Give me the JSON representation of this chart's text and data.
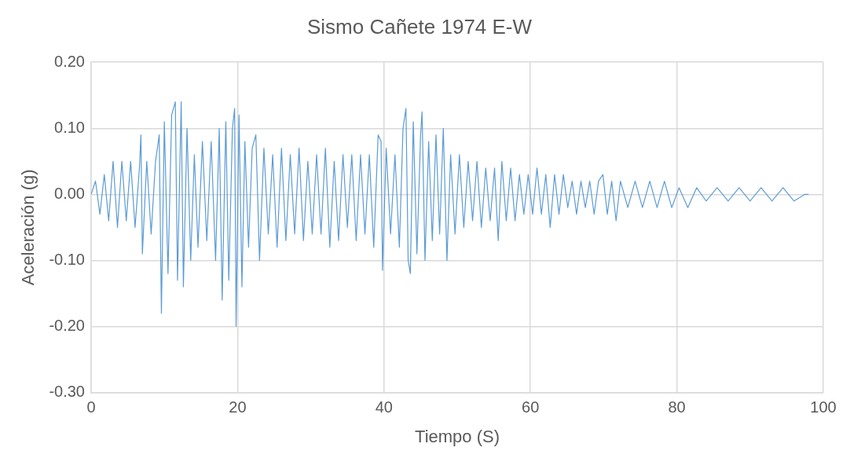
{
  "chart_data": {
    "type": "line",
    "title": "Sismo Cañete 1974 E-W",
    "xlabel": "Tiempo (S)",
    "ylabel": "Aceleración (g)",
    "x": [
      0,
      0.6,
      1.2,
      1.8,
      2.4,
      3.0,
      3.6,
      4.2,
      4.8,
      5.4,
      6.0,
      6.6,
      6.8,
      7.0,
      7.6,
      8.2,
      8.8,
      9.3,
      9.6,
      10.0,
      10.5,
      11.0,
      11.5,
      11.8,
      12.3,
      12.6,
      13.1,
      13.6,
      14.1,
      14.6,
      15.2,
      15.8,
      16.4,
      17.0,
      17.5,
      17.9,
      18.4,
      18.8,
      19.3,
      19.6,
      19.8,
      20.2,
      20.6,
      21.0,
      21.5,
      22.0,
      22.5,
      23.0,
      23.6,
      24.2,
      24.8,
      25.4,
      26.0,
      26.6,
      27.2,
      27.8,
      28.4,
      29.0,
      29.6,
      30.2,
      30.8,
      31.4,
      32.0,
      32.6,
      33.2,
      33.8,
      34.4,
      35.0,
      35.6,
      36.2,
      36.8,
      37.4,
      38.0,
      38.6,
      39.2,
      39.6,
      39.8,
      40.3,
      40.9,
      41.5,
      42.1,
      42.6,
      43.0,
      43.3,
      43.6,
      44.0,
      44.5,
      45.0,
      45.2,
      45.6,
      46.1,
      46.6,
      47.1,
      47.6,
      48.1,
      48.6,
      49.1,
      49.7,
      50.3,
      50.9,
      51.5,
      52.1,
      52.7,
      53.3,
      53.9,
      54.5,
      55.1,
      55.6,
      56.1,
      56.7,
      57.3,
      57.9,
      58.5,
      59.1,
      59.7,
      60.3,
      60.9,
      61.5,
      62.1,
      62.7,
      63.3,
      63.9,
      64.5,
      65.1,
      65.7,
      66.3,
      66.9,
      67.5,
      68.1,
      68.7,
      69.3,
      69.9,
      70.5,
      71.1,
      71.7,
      72.3,
      73.3,
      74.3,
      75.3,
      76.3,
      77.3,
      78.3,
      79.3,
      80.3,
      81.5,
      82.7,
      84,
      85.5,
      87,
      88.5,
      90,
      91.5,
      93,
      94.5,
      96,
      97.5,
      98
    ],
    "series": [
      {
        "color": "#5b9bd5",
        "values": [
          0,
          0.02,
          -0.03,
          0.03,
          -0.04,
          0.05,
          -0.05,
          0.05,
          -0.04,
          0.05,
          -0.05,
          0.04,
          0.09,
          -0.09,
          0.05,
          -0.06,
          0.05,
          0.09,
          -0.18,
          0.11,
          -0.12,
          0.12,
          0.14,
          -0.13,
          0.14,
          -0.14,
          0.1,
          -0.1,
          0.06,
          -0.08,
          0.08,
          -0.07,
          0.08,
          -0.1,
          0.1,
          -0.16,
          0.11,
          -0.13,
          0.1,
          0.13,
          -0.2,
          0.12,
          -0.14,
          0.08,
          -0.08,
          0.07,
          0.09,
          -0.1,
          0.07,
          -0.06,
          0.06,
          -0.08,
          0.07,
          -0.07,
          0.06,
          -0.06,
          0.07,
          -0.07,
          0.05,
          -0.06,
          0.06,
          -0.06,
          0.07,
          -0.08,
          0.05,
          -0.07,
          0.06,
          -0.05,
          0.06,
          -0.07,
          0.06,
          -0.06,
          0.06,
          -0.08,
          0.09,
          0.08,
          -0.115,
          0.07,
          -0.06,
          0.06,
          -0.08,
          0.1,
          0.13,
          -0.1,
          -0.12,
          0.11,
          -0.09,
          0.09,
          0.125,
          -0.1,
          0.08,
          -0.07,
          0.09,
          -0.06,
          0.1,
          -0.1,
          0.06,
          -0.06,
          0.06,
          -0.05,
          0.05,
          -0.04,
          0.05,
          -0.05,
          0.04,
          -0.04,
          0.04,
          -0.07,
          0.05,
          -0.04,
          0.04,
          -0.04,
          0.03,
          -0.03,
          0.03,
          -0.03,
          0.04,
          -0.03,
          0.03,
          -0.05,
          0.03,
          -0.03,
          0.03,
          -0.02,
          0.02,
          -0.03,
          0.02,
          -0.02,
          0.02,
          -0.03,
          0.02,
          0.03,
          -0.03,
          0.02,
          -0.04,
          0.02,
          -0.02,
          0.02,
          -0.02,
          0.02,
          -0.02,
          0.02,
          -0.02,
          0.01,
          -0.02,
          0.01,
          -0.01,
          0.01,
          -0.01,
          0.01,
          -0.01,
          0.01,
          -0.01,
          0.01,
          -0.01,
          0,
          0
        ]
      }
    ],
    "xlim": [
      0,
      100
    ],
    "xticks": [
      0,
      20,
      40,
      60,
      80,
      100
    ],
    "ylim": [
      -0.3,
      0.2
    ],
    "yticks": [
      {
        "value": -0.3,
        "label": "-0.30"
      },
      {
        "value": -0.2,
        "label": "-0.20"
      },
      {
        "value": -0.1,
        "label": "-0.10"
      },
      {
        "value": 0,
        "label": "0.00"
      },
      {
        "value": 0.1,
        "label": "0.10"
      },
      {
        "value": 0.2,
        "label": "0.20"
      }
    ],
    "grid": true,
    "legend": false,
    "marker": "none",
    "line_style": "solid"
  }
}
